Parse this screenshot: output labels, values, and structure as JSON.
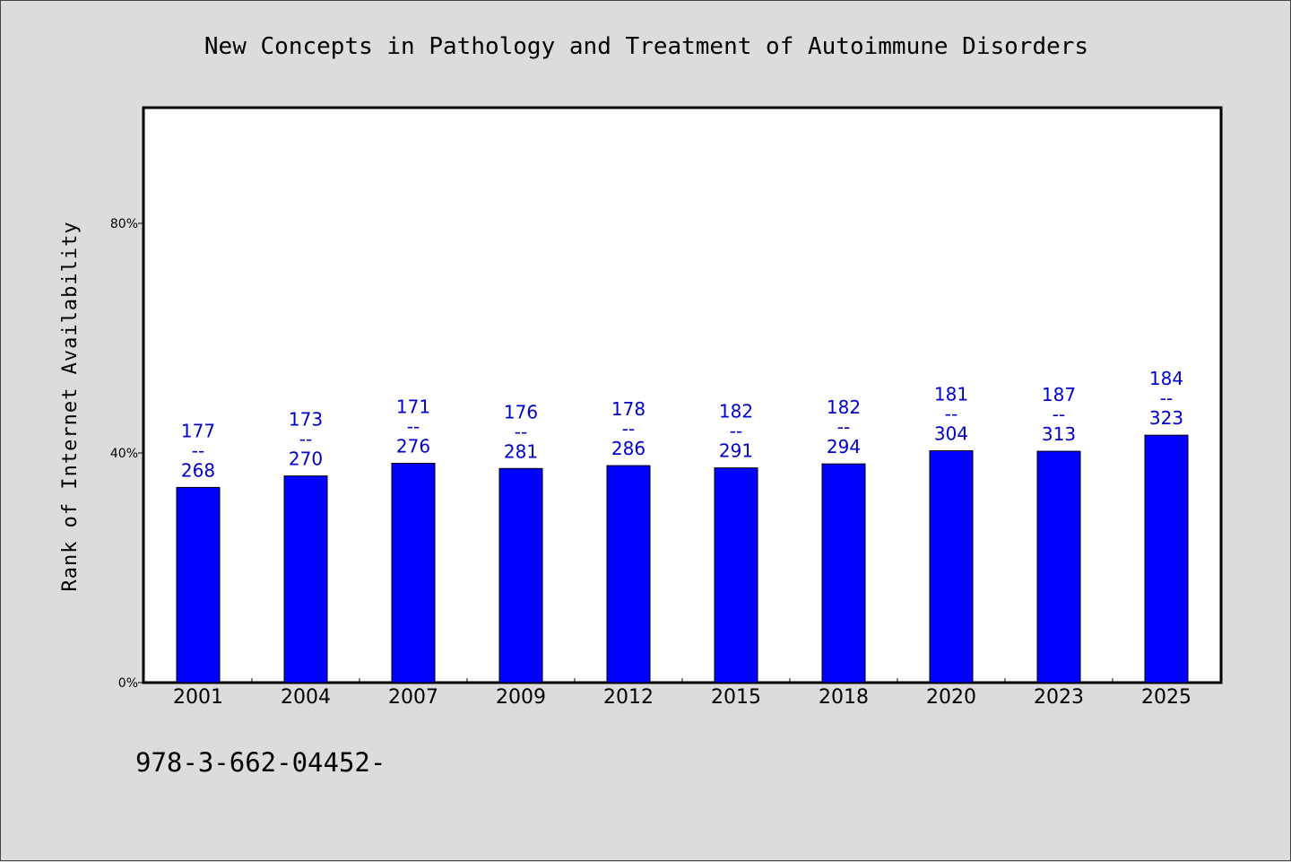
{
  "chart_data": {
    "type": "bar",
    "title": "New Concepts in Pathology and Treatment of Autoimmune Disorders",
    "xlabel": "",
    "ylabel": "Rank of Internet Availability",
    "ylim": [
      0,
      100
    ],
    "yticks": [
      0,
      40,
      80
    ],
    "ytick_labels": [
      "0%",
      "40%",
      "80%"
    ],
    "categories": [
      "2001",
      "2004",
      "2007",
      "2009",
      "2012",
      "2015",
      "2018",
      "2020",
      "2023",
      "2025"
    ],
    "values": [
      34,
      36,
      38.2,
      37.3,
      37.8,
      37.4,
      38.1,
      40.4,
      40.3,
      43.1
    ],
    "annotations": [
      [
        "177",
        "--",
        "268"
      ],
      [
        "173",
        "--",
        "270"
      ],
      [
        "171",
        "--",
        "276"
      ],
      [
        "176",
        "--",
        "281"
      ],
      [
        "178",
        "--",
        "286"
      ],
      [
        "182",
        "--",
        "291"
      ],
      [
        "182",
        "--",
        "294"
      ],
      [
        "181",
        "--",
        "304"
      ],
      [
        "187",
        "--",
        "313"
      ],
      [
        "184",
        "--",
        "323"
      ]
    ],
    "bar_color": "#0000ff",
    "label_color": "#0000cc",
    "grid": false,
    "legend": "none"
  },
  "footer": {
    "code": "978-3-662-04452-"
  }
}
